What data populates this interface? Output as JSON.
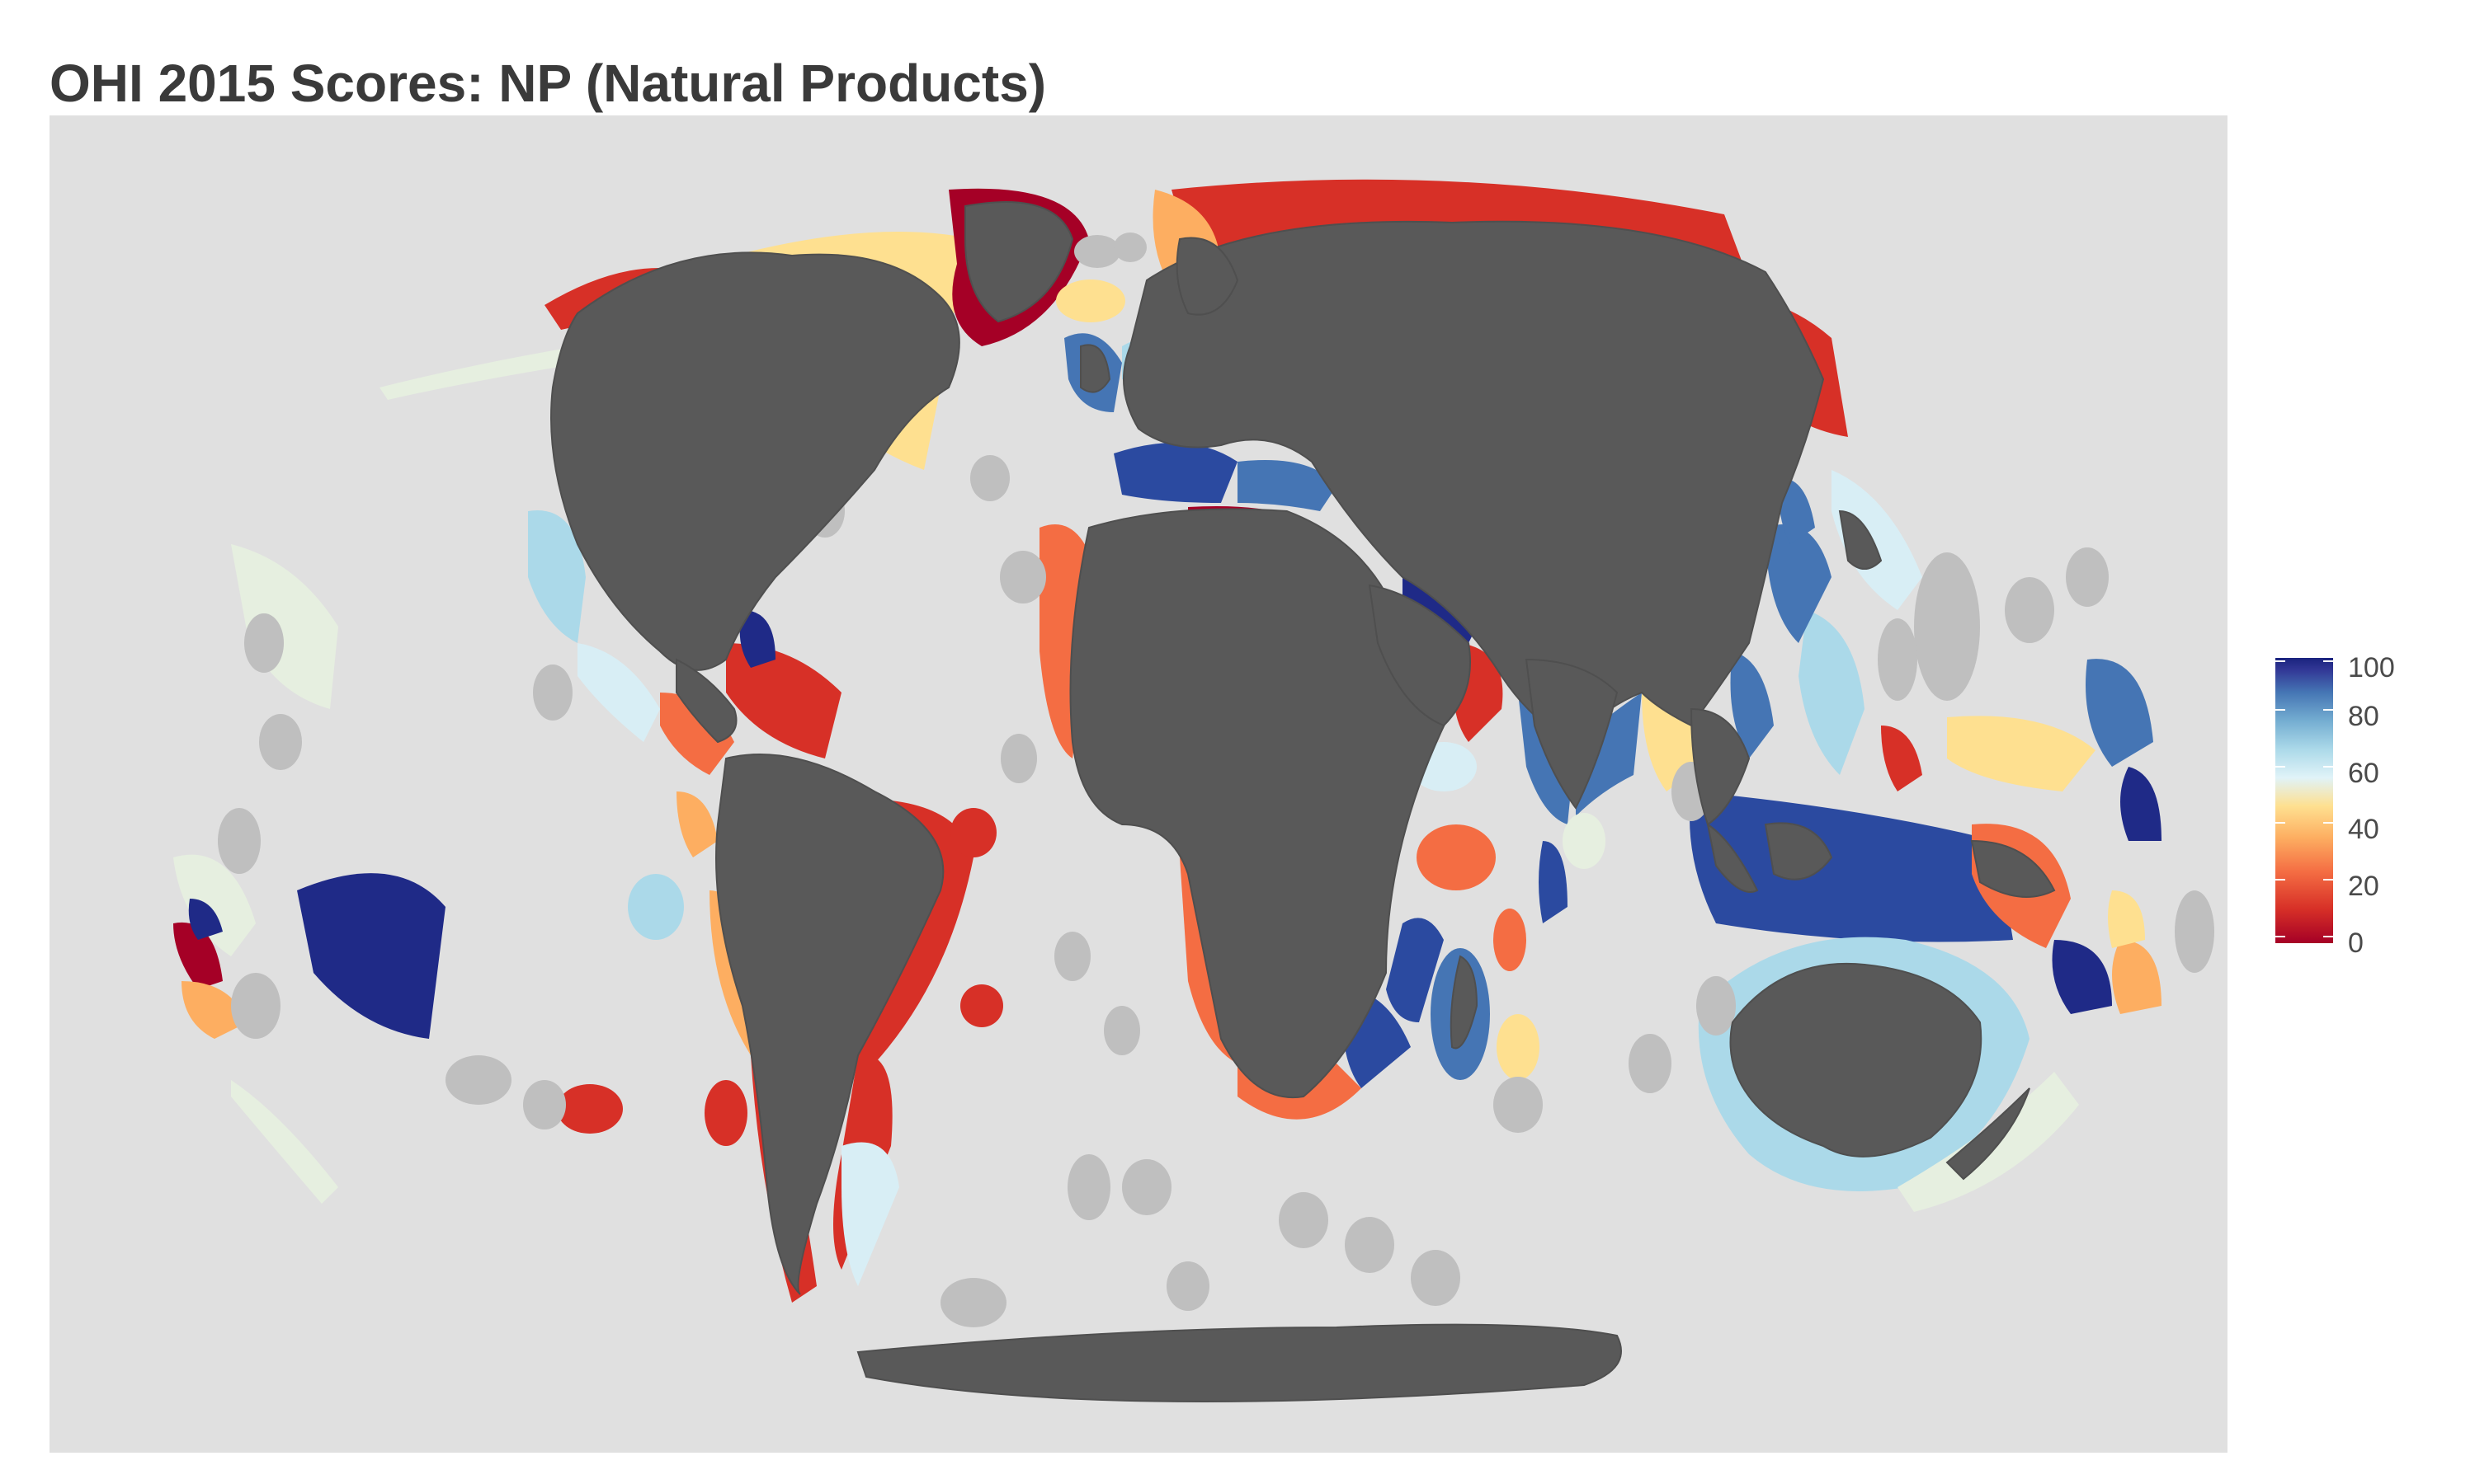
{
  "title": "OHI 2015 Scores: NP (Natural Products)",
  "legend": {
    "ticks": [
      "0",
      "20",
      "40",
      "60",
      "80",
      "100"
    ],
    "range": [
      0,
      100
    ],
    "scheme": "RdYlBu"
  },
  "colors": {
    "panel_background": "#e0e0e0",
    "land": "#595959",
    "no_data": "#bfbfbf",
    "score_0": "#a50026",
    "score_20": "#d73027",
    "score_30": "#f46d43",
    "score_40": "#fdae61",
    "score_50": "#fee090",
    "score_55": "#e6efe0",
    "score_60": "#d8eef5",
    "score_70": "#abd9e9",
    "score_80": "#4575b4",
    "score_100": "#1f2a87"
  },
  "projection": "Winkel tripel"
}
